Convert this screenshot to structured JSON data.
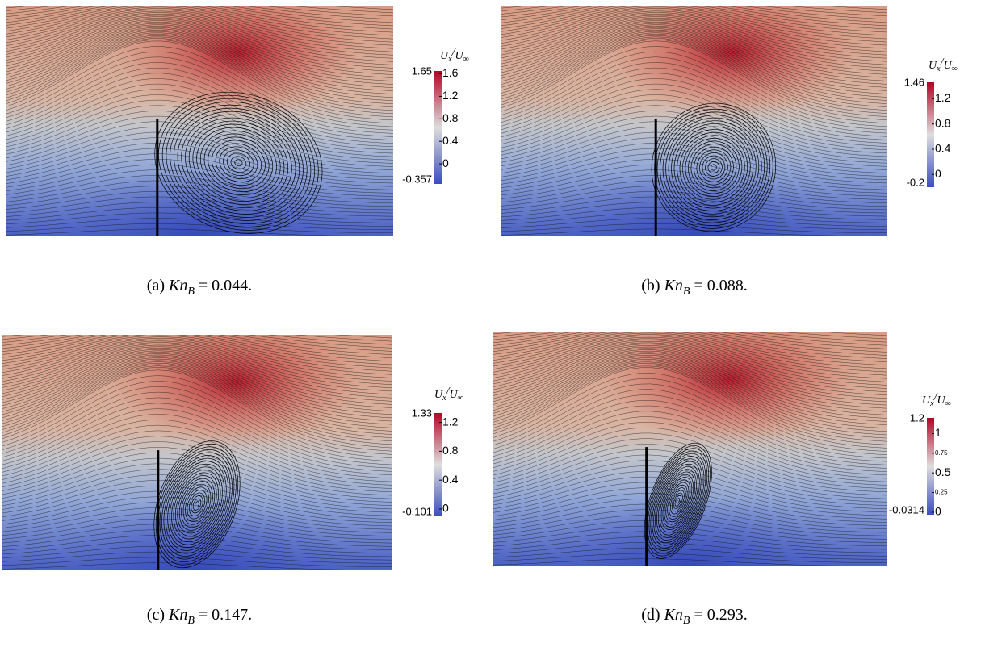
{
  "panels": [
    {
      "caption": {
        "label": "(a)",
        "symbol": "Kn",
        "subscript": "B",
        "relation": "= 0.044."
      },
      "colorbar": {
        "title": {
          "main": "U",
          "sub": "x",
          "sep": "/",
          "main2": "U",
          "sub2": "∞"
        },
        "max": 1.65,
        "min": -0.357,
        "ticks": [
          1.6,
          1.2,
          0.8,
          0.4,
          0
        ]
      }
    },
    {
      "caption": {
        "label": "(b)",
        "symbol": "Kn",
        "subscript": "B",
        "relation": "= 0.088."
      },
      "colorbar": {
        "title": {
          "main": "U",
          "sub": "x",
          "sep": "/",
          "main2": "U",
          "sub2": "∞"
        },
        "max": 1.46,
        "min": -0.2,
        "ticks": [
          1.2,
          0.8,
          0.4,
          0
        ]
      }
    },
    {
      "caption": {
        "label": "(c)",
        "symbol": "Kn",
        "subscript": "B",
        "relation": "= 0.147."
      },
      "colorbar": {
        "title": {
          "main": "U",
          "sub": "x",
          "sep": "/",
          "main2": "U",
          "sub2": "∞"
        },
        "max": 1.33,
        "min": -0.101,
        "ticks": [
          1.2,
          0.8,
          0.4,
          0
        ]
      }
    },
    {
      "caption": {
        "label": "(d)",
        "symbol": "Kn",
        "subscript": "B",
        "relation": "= 0.293."
      },
      "colorbar": {
        "title": {
          "main": "U",
          "sub": "x",
          "sep": "/",
          "main2": "U",
          "sub2": "∞"
        },
        "max": 1.2,
        "min": -0.0314,
        "ticks": [
          1,
          0.75,
          0.5,
          0.25,
          0
        ]
      }
    }
  ]
}
